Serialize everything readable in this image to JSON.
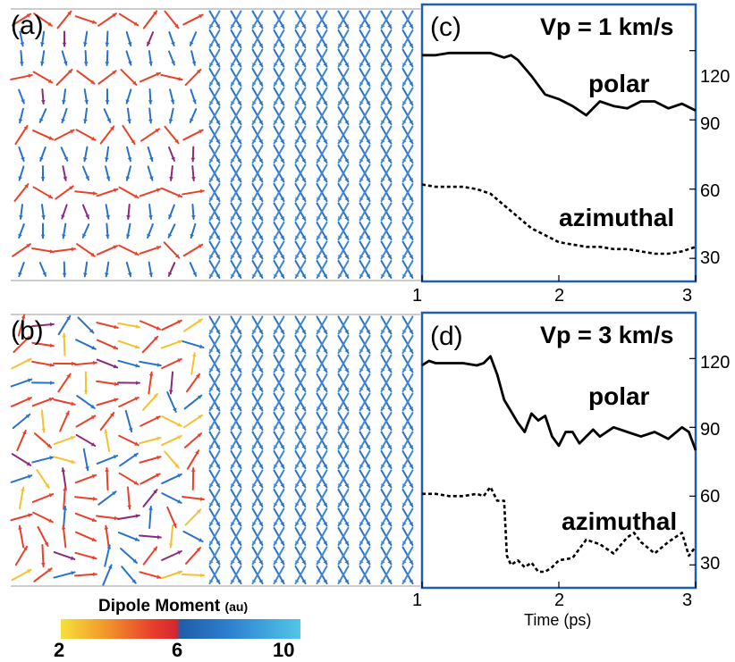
{
  "figure": {
    "panel_a_label": "(a)",
    "panel_b_label": "(b)",
    "panel_c_label": "(c)",
    "panel_d_label": "(d)",
    "colorbar": {
      "title": "Dipole Moment",
      "unit": "(au)",
      "ticks": [
        "2",
        "6",
        "10"
      ],
      "colors": [
        "#f7e13a",
        "#f19a2a",
        "#e8412b",
        "#d7262e",
        "#1f5ea8",
        "#2d7fcf",
        "#52c6e8"
      ]
    },
    "colors": {
      "frame": "#1f5fb0",
      "warm_arrow": "#e8412b",
      "purple_arrow": "#8b2a7a",
      "blue_arrow": "#2a72c8",
      "yellow_arrow": "#f3c230"
    }
  },
  "chart_data": [
    {
      "panel": "(c)",
      "type": "line",
      "title": "Vp = 1 km/s",
      "xlabel": "",
      "ylabel": "",
      "xlim": [
        1,
        3
      ],
      "ylim": [
        20,
        140
      ],
      "xticks": [
        "1",
        "2",
        "3"
      ],
      "yticks": [
        "30",
        "60",
        "90",
        "120"
      ],
      "grid": false,
      "series": [
        {
          "name": "polar",
          "style": "solid",
          "x": [
            1.0,
            1.1,
            1.2,
            1.3,
            1.4,
            1.5,
            1.6,
            1.65,
            1.7,
            1.8,
            1.9,
            2.0,
            2.1,
            2.2,
            2.3,
            2.4,
            2.5,
            2.6,
            2.7,
            2.8,
            2.9,
            3.0
          ],
          "y": [
            118,
            118,
            119,
            119,
            119,
            119,
            117,
            118,
            116,
            109,
            101,
            99,
            96,
            92,
            98,
            96,
            95,
            98,
            98,
            95,
            97,
            94
          ]
        },
        {
          "name": "azimuthal",
          "style": "dashed",
          "x": [
            1.0,
            1.1,
            1.2,
            1.3,
            1.4,
            1.5,
            1.6,
            1.7,
            1.8,
            1.9,
            2.0,
            2.1,
            2.2,
            2.3,
            2.4,
            2.5,
            2.6,
            2.7,
            2.8,
            2.9,
            3.0
          ],
          "y": [
            62,
            61,
            61,
            61,
            60,
            58,
            53,
            48,
            43,
            40,
            37,
            36,
            35,
            35,
            34,
            34,
            33,
            32,
            32,
            33,
            35
          ]
        }
      ]
    },
    {
      "panel": "(d)",
      "type": "line",
      "title": "Vp = 3 km/s",
      "xlabel": "Time (ps)",
      "ylabel": "",
      "xlim": [
        1,
        3
      ],
      "ylim": [
        20,
        140
      ],
      "xticks": [
        "1",
        "2",
        "3"
      ],
      "yticks": [
        "30",
        "60",
        "90",
        "120"
      ],
      "grid": false,
      "series": [
        {
          "name": "polar",
          "style": "solid",
          "x": [
            1.0,
            1.05,
            1.1,
            1.2,
            1.3,
            1.4,
            1.45,
            1.5,
            1.55,
            1.6,
            1.65,
            1.7,
            1.75,
            1.8,
            1.85,
            1.9,
            1.95,
            2.0,
            2.05,
            2.1,
            2.15,
            2.2,
            2.25,
            2.3,
            2.4,
            2.5,
            2.6,
            2.7,
            2.8,
            2.9,
            2.95,
            3.0
          ],
          "y": [
            117,
            119,
            118,
            118,
            118,
            117,
            118,
            121,
            113,
            102,
            97,
            92,
            88,
            96,
            93,
            95,
            86,
            82,
            88,
            88,
            83,
            86,
            89,
            86,
            90,
            88,
            86,
            88,
            85,
            90,
            88,
            80
          ]
        },
        {
          "name": "azimuthal",
          "style": "dashed",
          "x": [
            1.0,
            1.1,
            1.2,
            1.3,
            1.4,
            1.45,
            1.5,
            1.55,
            1.6,
            1.62,
            1.65,
            1.7,
            1.75,
            1.8,
            1.85,
            1.9,
            1.95,
            2.0,
            2.1,
            2.2,
            2.3,
            2.4,
            2.5,
            2.55,
            2.6,
            2.7,
            2.8,
            2.9,
            2.95,
            3.0
          ],
          "y": [
            61,
            61,
            60,
            60,
            61,
            60,
            64,
            58,
            58,
            34,
            30,
            32,
            29,
            31,
            27,
            27,
            29,
            32,
            33,
            41,
            39,
            35,
            42,
            44,
            40,
            35,
            40,
            44,
            34,
            38
          ]
        }
      ]
    }
  ]
}
